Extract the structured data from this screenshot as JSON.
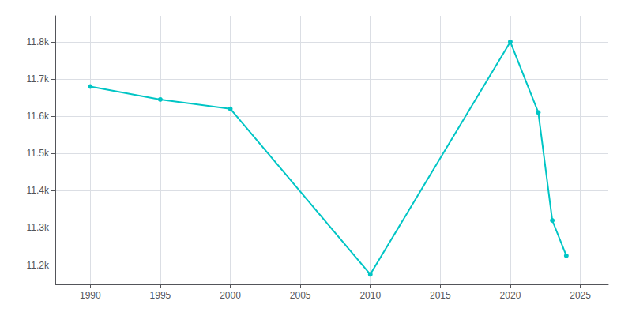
{
  "chart_data": {
    "type": "line",
    "x": [
      1990,
      1995,
      2000,
      2010,
      2020,
      2022,
      2023,
      2024
    ],
    "values": [
      11680,
      11645,
      11620,
      11175,
      11800,
      11610,
      11320,
      11225
    ],
    "color": "#00C5C5",
    "marker": "circle",
    "xlim": [
      1987.5,
      2027
    ],
    "xticks": [
      1990,
      1995,
      2000,
      2005,
      2010,
      2015,
      2020,
      2025
    ],
    "ylim": [
      11148,
      11870
    ],
    "yticks": [
      {
        "value": 11200,
        "label": "11.2k"
      },
      {
        "value": 11300,
        "label": "11.3k"
      },
      {
        "value": 11400,
        "label": "11.4k"
      },
      {
        "value": 11500,
        "label": "11.5k"
      },
      {
        "value": 11600,
        "label": "11.6k"
      },
      {
        "value": 11700,
        "label": "11.7k"
      },
      {
        "value": 11800,
        "label": "11.8k"
      }
    ],
    "grid": true
  }
}
